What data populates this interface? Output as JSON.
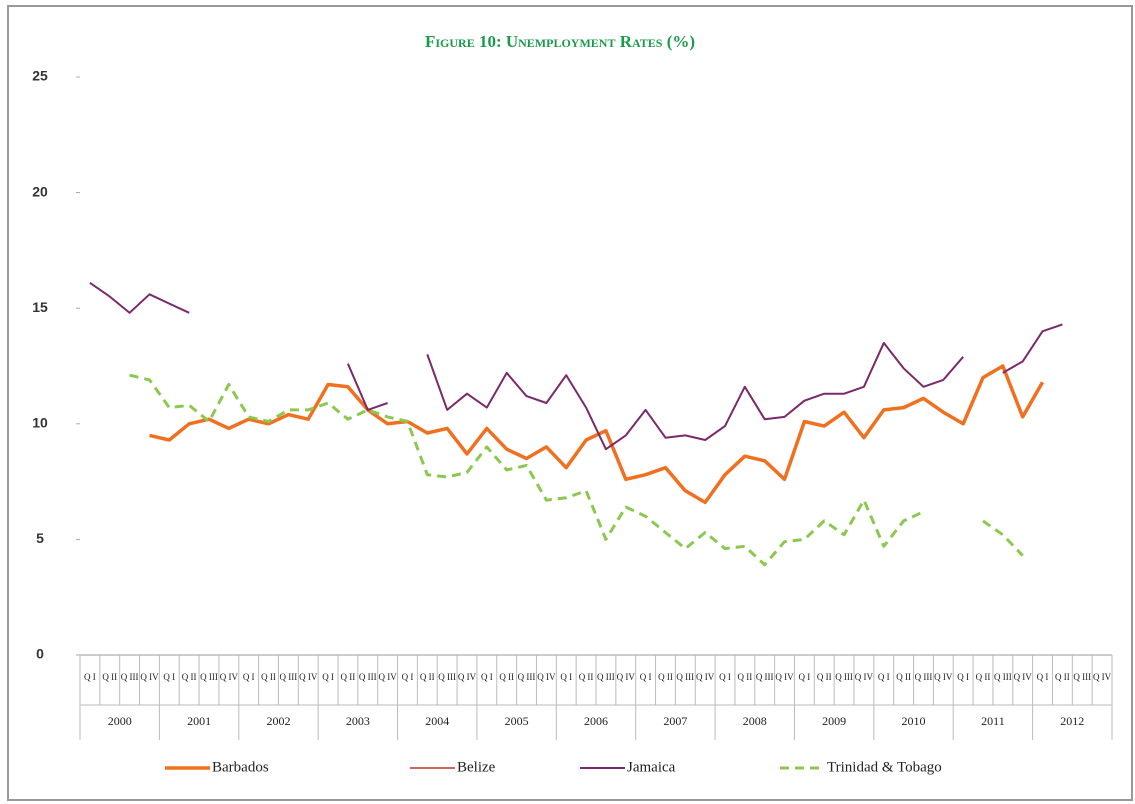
{
  "chart_data": {
    "type": "line",
    "title": "Figure 10: Unemployment Rates (%)",
    "categories": [
      "Q I",
      "Q II",
      "Q III",
      "Q IV",
      "Q I",
      "Q II",
      "Q III",
      "Q IV",
      "Q I",
      "Q II",
      "Q III",
      "Q IV",
      "Q I",
      "Q II",
      "Q III",
      "Q IV",
      "Q I",
      "Q II",
      "Q III",
      "Q IV",
      "Q I",
      "Q II",
      "Q III",
      "Q IV",
      "Q I",
      "Q II",
      "Q III",
      "Q IV",
      "Q I",
      "Q II",
      "Q III",
      "Q IV",
      "Q I",
      "Q II",
      "Q III",
      "Q IV",
      "Q I",
      "Q II",
      "Q III",
      "Q IV",
      "Q I",
      "Q II",
      "Q III",
      "Q IV",
      "Q I",
      "Q II",
      "Q III",
      "Q IV",
      "Q I",
      "Q II",
      "Q III",
      "Q IV"
    ],
    "years": [
      "2000",
      "2001",
      "2002",
      "2003",
      "2004",
      "2005",
      "2006",
      "2007",
      "2008",
      "2009",
      "2010",
      "2011",
      "2012"
    ],
    "ylim": [
      0,
      25
    ],
    "yticks": [
      0,
      5,
      10,
      15,
      20,
      25
    ],
    "series": [
      {
        "name": "Barbados",
        "color": "#f07020",
        "width": 3.5,
        "dash": false,
        "values": [
          null,
          null,
          null,
          9.5,
          9.3,
          10.0,
          10.2,
          9.8,
          10.2,
          10.0,
          10.4,
          10.2,
          11.7,
          11.6,
          10.6,
          10.0,
          10.1,
          9.6,
          9.8,
          8.7,
          9.8,
          8.9,
          8.5,
          9.0,
          8.1,
          9.3,
          9.7,
          7.6,
          7.8,
          8.1,
          7.1,
          6.6,
          7.8,
          8.6,
          8.4,
          7.6,
          10.1,
          9.9,
          10.5,
          9.4,
          10.6,
          10.7,
          11.1,
          10.5,
          10.0,
          12.0,
          12.5,
          10.3,
          11.8,
          null,
          null,
          null
        ]
      },
      {
        "name": "Belize",
        "color": "#c0302a",
        "width": 1.5,
        "dash": false,
        "values": [
          null,
          null,
          null,
          null,
          null,
          null,
          null,
          null,
          null,
          null,
          null,
          null,
          null,
          null,
          null,
          null,
          null,
          null,
          null,
          null,
          null,
          null,
          null,
          null,
          null,
          null,
          null,
          null,
          null,
          null,
          null,
          null,
          null,
          null,
          null,
          null,
          null,
          null,
          null,
          null,
          null,
          null,
          null,
          null,
          null,
          null,
          null,
          null,
          null,
          null,
          null,
          null
        ]
      },
      {
        "name": "Jamaica",
        "color": "#7a2a6a",
        "width": 2,
        "dash": false,
        "values": [
          16.1,
          15.5,
          14.8,
          15.6,
          15.2,
          14.8,
          null,
          null,
          null,
          null,
          null,
          null,
          null,
          12.6,
          10.6,
          10.9,
          null,
          13.0,
          10.6,
          11.3,
          10.7,
          12.2,
          11.2,
          10.9,
          12.1,
          10.7,
          8.9,
          9.5,
          10.6,
          9.4,
          9.5,
          9.3,
          9.9,
          11.6,
          10.2,
          10.3,
          11.0,
          11.3,
          11.3,
          11.6,
          13.5,
          12.4,
          11.6,
          11.9,
          12.9,
          null,
          12.2,
          12.7,
          14.0,
          14.3,
          null,
          null
        ]
      },
      {
        "name": "Trinidad & Tobago",
        "color": "#8cc850",
        "width": 3,
        "dash": true,
        "values": [
          null,
          null,
          12.1,
          11.9,
          10.7,
          10.8,
          10.1,
          11.7,
          10.3,
          10.1,
          10.6,
          10.6,
          10.9,
          10.2,
          10.6,
          10.3,
          10.1,
          7.8,
          7.7,
          7.9,
          9.0,
          8.0,
          8.2,
          6.7,
          6.8,
          7.1,
          5.0,
          6.4,
          6.0,
          5.3,
          4.6,
          5.3,
          4.6,
          4.7,
          3.9,
          4.9,
          5.0,
          5.8,
          5.2,
          6.7,
          4.7,
          5.8,
          6.2,
          null,
          null,
          5.8,
          5.2,
          4.3,
          null,
          null,
          null,
          null
        ]
      }
    ]
  }
}
